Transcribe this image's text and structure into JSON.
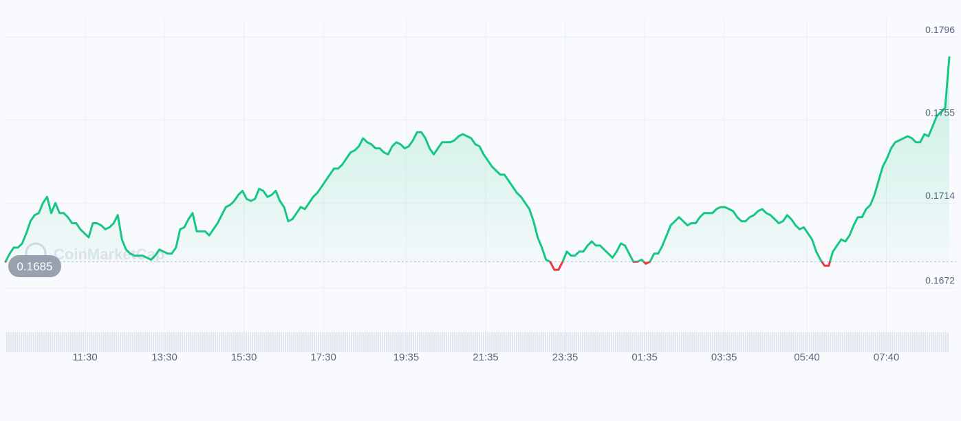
{
  "chart_data": {
    "type": "line",
    "watermark": "CoinMarketCap",
    "reference_value": 0.1685,
    "reference_label": "0.1685",
    "ylim": [
      0.166,
      0.18
    ],
    "y_ticks": [
      {
        "value": 0.1796,
        "label": "0.1796"
      },
      {
        "value": 0.1755,
        "label": "0.1755"
      },
      {
        "value": 0.1714,
        "label": "0.1714"
      },
      {
        "value": 0.1672,
        "label": "0.1672"
      }
    ],
    "x_ticks": [
      {
        "t": 2.0,
        "label": "11:30"
      },
      {
        "t": 4.0,
        "label": "13:30"
      },
      {
        "t": 6.0,
        "label": "15:30"
      },
      {
        "t": 8.0,
        "label": "17:30"
      },
      {
        "t": 10.083,
        "label": "19:35"
      },
      {
        "t": 12.083,
        "label": "21:35"
      },
      {
        "t": 14.083,
        "label": "23:35"
      },
      {
        "t": 16.083,
        "label": "01:35"
      },
      {
        "t": 18.083,
        "label": "03:35"
      },
      {
        "t": 20.167,
        "label": "05:40"
      },
      {
        "t": 22.167,
        "label": "07:40"
      }
    ],
    "x_range": [
      0.0,
      23.75
    ],
    "colors": {
      "up": "#16c784",
      "down": "#ea3943",
      "grid": "#eceff3",
      "tick_text": "#58667e"
    },
    "series": [
      {
        "values": [
          [
            0.0,
            0.1685
          ],
          [
            0.105,
            0.1689
          ],
          [
            0.209,
            0.1692
          ],
          [
            0.314,
            0.1692
          ],
          [
            0.419,
            0.1694
          ],
          [
            0.523,
            0.1699
          ],
          [
            0.628,
            0.1705
          ],
          [
            0.732,
            0.1708
          ],
          [
            0.837,
            0.1709
          ],
          [
            0.942,
            0.1714
          ],
          [
            1.046,
            0.1717
          ],
          [
            1.151,
            0.1709
          ],
          [
            1.256,
            0.1714
          ],
          [
            1.36,
            0.1709
          ],
          [
            1.465,
            0.1709
          ],
          [
            1.569,
            0.1707
          ],
          [
            1.674,
            0.1704
          ],
          [
            1.779,
            0.1704
          ],
          [
            1.883,
            0.1701
          ],
          [
            1.988,
            0.1699
          ],
          [
            2.093,
            0.1697
          ],
          [
            2.197,
            0.1704
          ],
          [
            2.302,
            0.1704
          ],
          [
            2.406,
            0.1703
          ],
          [
            2.511,
            0.1701
          ],
          [
            2.616,
            0.1702
          ],
          [
            2.72,
            0.1704
          ],
          [
            2.825,
            0.1708
          ],
          [
            2.93,
            0.1696
          ],
          [
            3.034,
            0.1691
          ],
          [
            3.139,
            0.1689
          ],
          [
            3.244,
            0.1688
          ],
          [
            3.348,
            0.1688
          ],
          [
            3.453,
            0.1688
          ],
          [
            3.557,
            0.1687
          ],
          [
            3.662,
            0.1686
          ],
          [
            3.767,
            0.1688
          ],
          [
            3.871,
            0.1691
          ],
          [
            3.976,
            0.169
          ],
          [
            4.081,
            0.1689
          ],
          [
            4.185,
            0.1689
          ],
          [
            4.29,
            0.1692
          ],
          [
            4.394,
            0.1701
          ],
          [
            4.499,
            0.1702
          ],
          [
            4.604,
            0.1706
          ],
          [
            4.708,
            0.1709
          ],
          [
            4.813,
            0.17
          ],
          [
            4.918,
            0.17
          ],
          [
            5.022,
            0.17
          ],
          [
            5.127,
            0.1698
          ],
          [
            5.231,
            0.1701
          ],
          [
            5.336,
            0.1704
          ],
          [
            5.441,
            0.1708
          ],
          [
            5.545,
            0.1712
          ],
          [
            5.65,
            0.1713
          ],
          [
            5.755,
            0.1715
          ],
          [
            5.859,
            0.1718
          ],
          [
            5.964,
            0.172
          ],
          [
            6.068,
            0.1716
          ],
          [
            6.173,
            0.1715
          ],
          [
            6.278,
            0.1716
          ],
          [
            6.382,
            0.1721
          ],
          [
            6.487,
            0.172
          ],
          [
            6.592,
            0.1717
          ],
          [
            6.696,
            0.1718
          ],
          [
            6.801,
            0.172
          ],
          [
            6.905,
            0.1715
          ],
          [
            7.01,
            0.1712
          ],
          [
            7.115,
            0.1705
          ],
          [
            7.219,
            0.1706
          ],
          [
            7.324,
            0.1709
          ],
          [
            7.429,
            0.1712
          ],
          [
            7.533,
            0.1711
          ],
          [
            7.638,
            0.1714
          ],
          [
            7.742,
            0.1717
          ],
          [
            7.847,
            0.1719
          ],
          [
            7.952,
            0.1722
          ],
          [
            8.056,
            0.1725
          ],
          [
            8.161,
            0.1728
          ],
          [
            8.266,
            0.1731
          ],
          [
            8.37,
            0.1731
          ],
          [
            8.475,
            0.1733
          ],
          [
            8.579,
            0.1736
          ],
          [
            8.684,
            0.1739
          ],
          [
            8.789,
            0.174
          ],
          [
            8.893,
            0.1742
          ],
          [
            8.998,
            0.1746
          ],
          [
            9.103,
            0.1744
          ],
          [
            9.207,
            0.1743
          ],
          [
            9.312,
            0.1741
          ],
          [
            9.416,
            0.1741
          ],
          [
            9.521,
            0.1739
          ],
          [
            9.626,
            0.1738
          ],
          [
            9.73,
            0.1742
          ],
          [
            9.835,
            0.1744
          ],
          [
            9.94,
            0.1743
          ],
          [
            10.044,
            0.1741
          ],
          [
            10.149,
            0.1742
          ],
          [
            10.253,
            0.1745
          ],
          [
            10.358,
            0.1749
          ],
          [
            10.463,
            0.1749
          ],
          [
            10.567,
            0.1746
          ],
          [
            10.672,
            0.1741
          ],
          [
            10.777,
            0.1738
          ],
          [
            10.881,
            0.1741
          ],
          [
            10.986,
            0.1744
          ],
          [
            11.09,
            0.1744
          ],
          [
            11.195,
            0.1744
          ],
          [
            11.3,
            0.1745
          ],
          [
            11.404,
            0.1747
          ],
          [
            11.509,
            0.1748
          ],
          [
            11.614,
            0.1747
          ],
          [
            11.718,
            0.1746
          ],
          [
            11.823,
            0.1743
          ],
          [
            11.927,
            0.1742
          ],
          [
            12.032,
            0.1738
          ],
          [
            12.137,
            0.1735
          ],
          [
            12.241,
            0.1732
          ],
          [
            12.346,
            0.173
          ],
          [
            12.451,
            0.1728
          ],
          [
            12.555,
            0.1728
          ],
          [
            12.66,
            0.1725
          ],
          [
            12.764,
            0.1722
          ],
          [
            12.869,
            0.1719
          ],
          [
            12.974,
            0.1717
          ],
          [
            13.078,
            0.1714
          ],
          [
            13.183,
            0.1711
          ],
          [
            13.288,
            0.1705
          ],
          [
            13.392,
            0.1697
          ],
          [
            13.497,
            0.1692
          ],
          [
            13.601,
            0.1686
          ],
          [
            13.706,
            0.1685
          ],
          [
            13.811,
            0.1681
          ],
          [
            13.915,
            0.1681
          ],
          [
            14.02,
            0.1685
          ],
          [
            14.125,
            0.169
          ],
          [
            14.229,
            0.1688
          ],
          [
            14.334,
            0.1688
          ],
          [
            14.438,
            0.169
          ],
          [
            14.543,
            0.169
          ],
          [
            14.648,
            0.1693
          ],
          [
            14.752,
            0.1695
          ],
          [
            14.857,
            0.1693
          ],
          [
            14.962,
            0.1693
          ],
          [
            15.066,
            0.1691
          ],
          [
            15.171,
            0.1689
          ],
          [
            15.275,
            0.1687
          ],
          [
            15.38,
            0.169
          ],
          [
            15.485,
            0.1694
          ],
          [
            15.589,
            0.1693
          ],
          [
            15.694,
            0.1689
          ],
          [
            15.799,
            0.1685
          ],
          [
            15.903,
            0.1685
          ],
          [
            16.008,
            0.1686
          ],
          [
            16.112,
            0.1684
          ],
          [
            16.217,
            0.1685
          ],
          [
            16.322,
            0.1689
          ],
          [
            16.426,
            0.1689
          ],
          [
            16.531,
            0.1693
          ],
          [
            16.636,
            0.1698
          ],
          [
            16.74,
            0.1703
          ],
          [
            16.845,
            0.1705
          ],
          [
            16.949,
            0.1707
          ],
          [
            17.054,
            0.1705
          ],
          [
            17.159,
            0.1703
          ],
          [
            17.263,
            0.1704
          ],
          [
            17.368,
            0.1704
          ],
          [
            17.473,
            0.1707
          ],
          [
            17.577,
            0.1709
          ],
          [
            17.682,
            0.1709
          ],
          [
            17.786,
            0.1709
          ],
          [
            17.891,
            0.1711
          ],
          [
            17.996,
            0.1712
          ],
          [
            18.1,
            0.1712
          ],
          [
            18.205,
            0.1711
          ],
          [
            18.31,
            0.171
          ],
          [
            18.414,
            0.1707
          ],
          [
            18.519,
            0.1705
          ],
          [
            18.623,
            0.1705
          ],
          [
            18.728,
            0.1707
          ],
          [
            18.833,
            0.1708
          ],
          [
            18.937,
            0.171
          ],
          [
            19.042,
            0.1711
          ],
          [
            19.147,
            0.1709
          ],
          [
            19.251,
            0.1708
          ],
          [
            19.356,
            0.1706
          ],
          [
            19.46,
            0.1704
          ],
          [
            19.565,
            0.1705
          ],
          [
            19.67,
            0.1708
          ],
          [
            19.774,
            0.1706
          ],
          [
            19.879,
            0.1703
          ],
          [
            19.984,
            0.1701
          ],
          [
            20.088,
            0.1702
          ],
          [
            20.193,
            0.1699
          ],
          [
            20.297,
            0.1696
          ],
          [
            20.402,
            0.169
          ],
          [
            20.507,
            0.1686
          ],
          [
            20.611,
            0.1683
          ],
          [
            20.716,
            0.1683
          ],
          [
            20.821,
            0.169
          ],
          [
            20.925,
            0.1693
          ],
          [
            21.03,
            0.1696
          ],
          [
            21.134,
            0.1695
          ],
          [
            21.239,
            0.1698
          ],
          [
            21.344,
            0.1703
          ],
          [
            21.448,
            0.1707
          ],
          [
            21.553,
            0.1707
          ],
          [
            21.658,
            0.1711
          ],
          [
            21.762,
            0.1713
          ],
          [
            21.867,
            0.1718
          ],
          [
            21.971,
            0.1725
          ],
          [
            22.076,
            0.1732
          ],
          [
            22.181,
            0.1736
          ],
          [
            22.285,
            0.1741
          ],
          [
            22.39,
            0.1744
          ],
          [
            22.495,
            0.1745
          ],
          [
            22.599,
            0.1746
          ],
          [
            22.704,
            0.1747
          ],
          [
            22.808,
            0.1746
          ],
          [
            22.913,
            0.1744
          ],
          [
            23.018,
            0.1744
          ],
          [
            23.122,
            0.1748
          ],
          [
            23.227,
            0.1747
          ],
          [
            23.332,
            0.1752
          ],
          [
            23.436,
            0.1757
          ],
          [
            23.541,
            0.1759
          ],
          [
            23.645,
            0.1761
          ],
          [
            23.75,
            0.1786
          ]
        ]
      }
    ]
  }
}
